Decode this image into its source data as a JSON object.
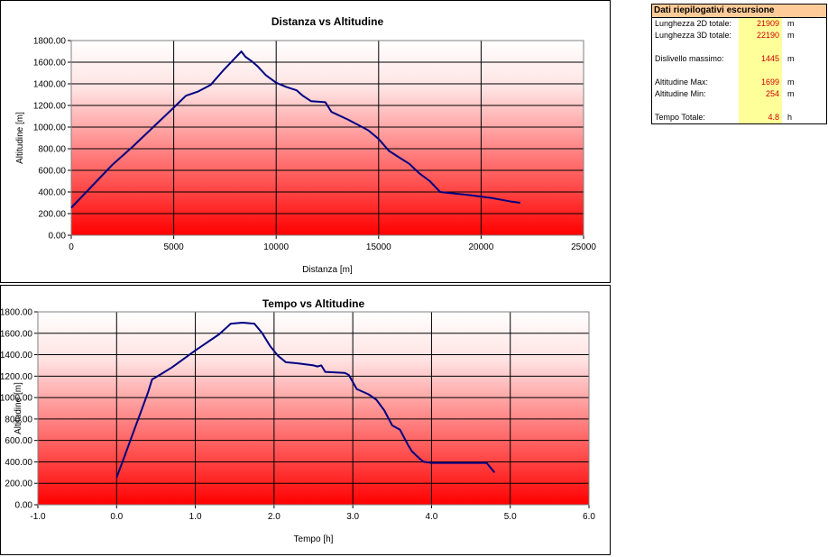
{
  "chart_data": [
    {
      "type": "line",
      "title": "Distanza vs Altitudine",
      "xlabel": "Distanza [m]",
      "ylabel": "Altitudine [m]",
      "xlim": [
        0,
        25000
      ],
      "ylim": [
        0,
        1800
      ],
      "x_ticks": [
        "0",
        "5000",
        "10000",
        "15000",
        "20000",
        "25000"
      ],
      "y_ticks": [
        "0.00",
        "200.00",
        "400.00",
        "600.00",
        "800.00",
        "1000.00",
        "1200.00",
        "1400.00",
        "1600.00",
        "1800.00"
      ],
      "grid": true,
      "series": [
        {
          "color": "#000080",
          "x": [
            0,
            2000,
            3000,
            4000,
            5000,
            5600,
            6200,
            6800,
            7400,
            8000,
            8300,
            8500,
            8800,
            9100,
            9500,
            10000,
            10500,
            11000,
            11300,
            11700,
            12400,
            12700,
            13500,
            14000,
            14500,
            15000,
            15500,
            16000,
            16500,
            17000,
            17500,
            18000,
            18500,
            19500,
            20500,
            21500,
            21909
          ],
          "y": [
            254,
            650,
            820,
            1000,
            1180,
            1290,
            1330,
            1390,
            1520,
            1640,
            1699,
            1650,
            1610,
            1560,
            1480,
            1410,
            1370,
            1340,
            1290,
            1240,
            1230,
            1140,
            1070,
            1020,
            970,
            890,
            780,
            720,
            660,
            570,
            500,
            400,
            390,
            370,
            345,
            310,
            300
          ]
        }
      ]
    },
    {
      "type": "line",
      "title": "Tempo vs Altitudine",
      "xlabel": "Tempo [h]",
      "ylabel": "Altitudine [m]",
      "xlim": [
        -1.0,
        6.0
      ],
      "ylim": [
        0,
        1800
      ],
      "x_ticks": [
        "-1.0",
        "0.0",
        "1.0",
        "2.0",
        "3.0",
        "4.0",
        "5.0",
        "6.0"
      ],
      "y_ticks": [
        "0.00",
        "200.00",
        "400.00",
        "600.00",
        "800.00",
        "1000.00",
        "1200.00",
        "1400.00",
        "1600.00",
        "1800.00"
      ],
      "grid": true,
      "series": [
        {
          "color": "#000080",
          "x": [
            0.0,
            0.1,
            0.2,
            0.3,
            0.4,
            0.45,
            0.5,
            0.7,
            1.0,
            1.3,
            1.45,
            1.6,
            1.75,
            1.85,
            1.95,
            2.05,
            2.15,
            2.3,
            2.5,
            2.55,
            2.6,
            2.65,
            2.9,
            2.95,
            3.05,
            3.2,
            3.3,
            3.4,
            3.5,
            3.6,
            3.7,
            3.75,
            3.85,
            3.9,
            4.0,
            4.3,
            4.6,
            4.7,
            4.8
          ],
          "y": [
            254,
            450,
            650,
            850,
            1050,
            1170,
            1190,
            1280,
            1440,
            1590,
            1690,
            1699,
            1690,
            1600,
            1480,
            1390,
            1330,
            1320,
            1300,
            1290,
            1300,
            1240,
            1230,
            1210,
            1080,
            1030,
            980,
            880,
            740,
            700,
            560,
            500,
            430,
            400,
            390,
            390,
            390,
            390,
            300
          ]
        }
      ]
    }
  ],
  "summary": {
    "title": "Dati riepilogativi escursione",
    "rows": [
      {
        "label": "Lunghezza 2D totale:",
        "value": "21909",
        "unit": "m"
      },
      {
        "label": "Lunghezza 3D totale:",
        "value": "22190",
        "unit": "m"
      },
      {
        "label": "",
        "value": "",
        "unit": ""
      },
      {
        "label": "Dislivello massimo:",
        "value": "1445",
        "unit": "m"
      },
      {
        "label": "",
        "value": "",
        "unit": ""
      },
      {
        "label": "Altitudine Max:",
        "value": "1699",
        "unit": "m"
      },
      {
        "label": "Altitudine Min:",
        "value": "254",
        "unit": "m"
      },
      {
        "label": "",
        "value": "",
        "unit": ""
      },
      {
        "label": "Tempo Totale:",
        "value": "4.8",
        "unit": "h"
      }
    ]
  }
}
